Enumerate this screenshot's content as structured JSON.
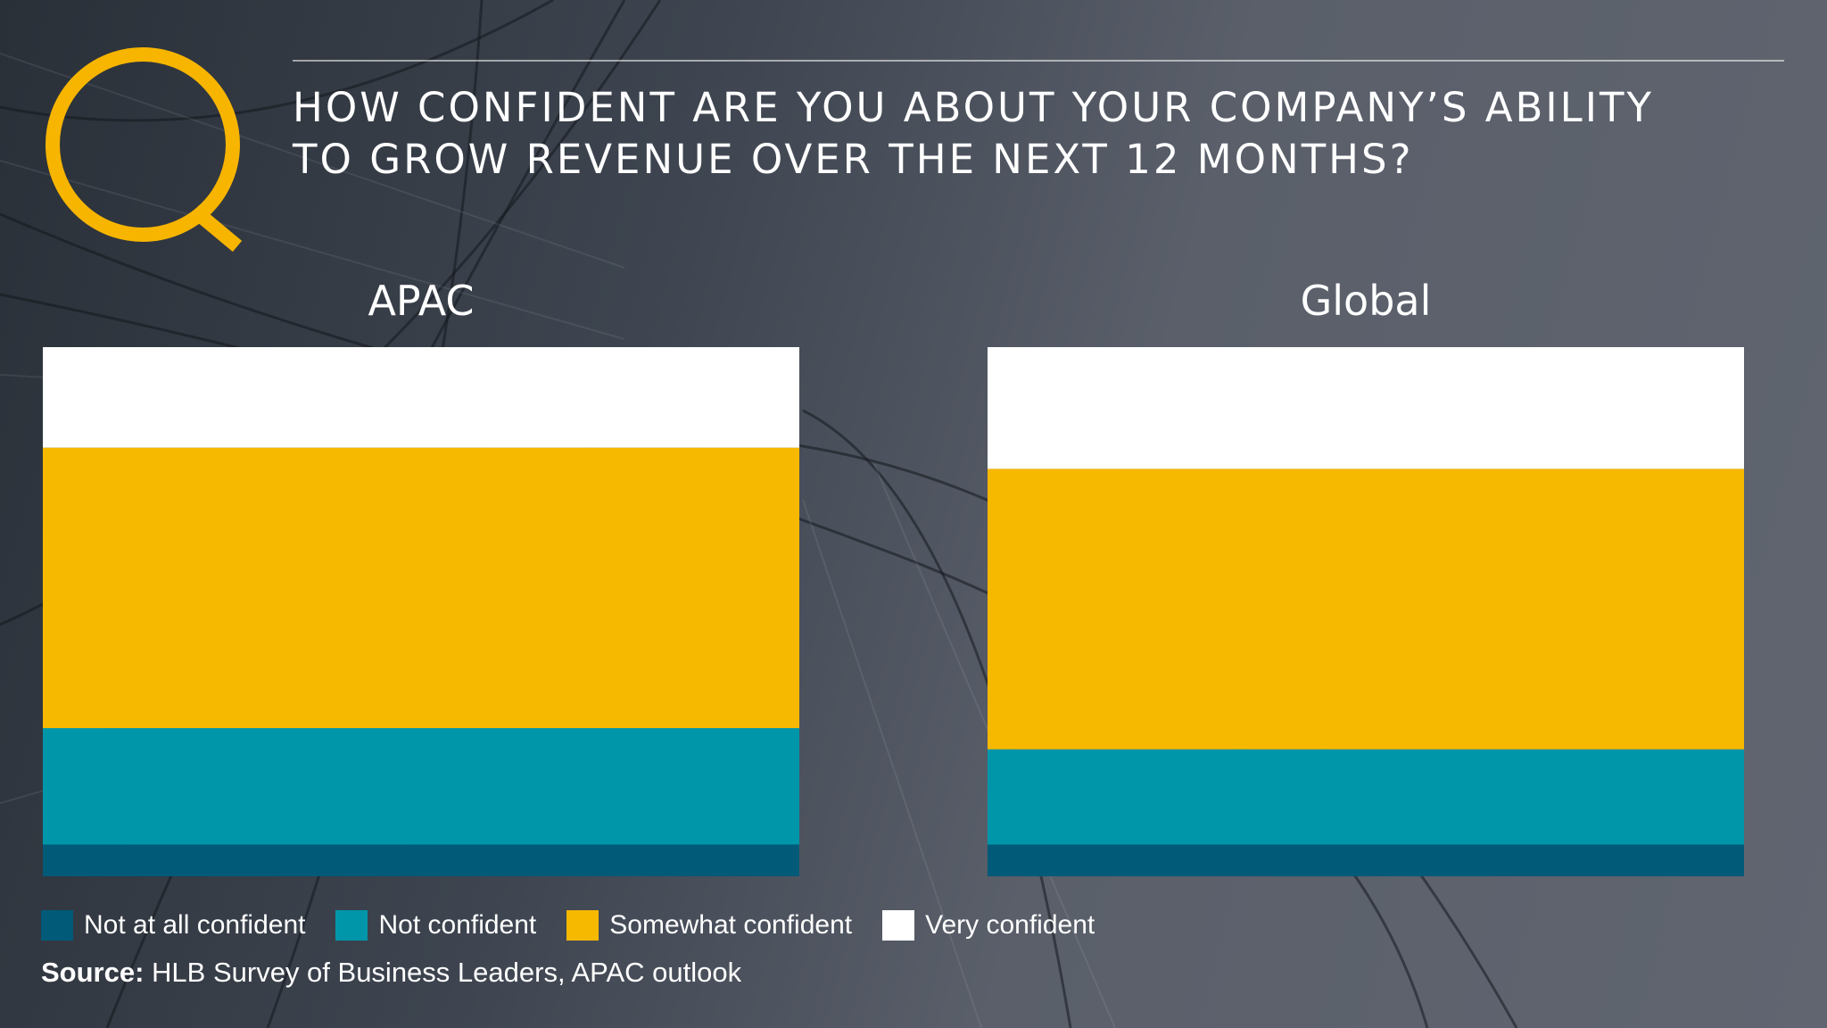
{
  "title": {
    "line1": "HOW CONFIDENT ARE YOU ABOUT YOUR COMPANY’S ABILITY",
    "line2": "TO GROW REVENUE OVER THE NEXT 12 MONTHS?"
  },
  "logo": {
    "letter": "Q",
    "icon": "q-logo-icon",
    "color": "#F7B500"
  },
  "colors": {
    "not_at_all": "#005A78",
    "not_confident": "#0096AA",
    "somewhat": "#F7B800",
    "very": "#FFFFFF"
  },
  "chart_data": [
    {
      "type": "bar",
      "stacked": true,
      "title": "APAC",
      "categories": [
        "APAC"
      ],
      "series": [
        {
          "name": "Not at all confident",
          "values": [
            6
          ]
        },
        {
          "name": "Not confident",
          "values": [
            22
          ]
        },
        {
          "name": "Somewhat confident",
          "values": [
            53
          ]
        },
        {
          "name": "Very confident",
          "values": [
            19
          ]
        }
      ],
      "ylim": [
        0,
        100
      ]
    },
    {
      "type": "bar",
      "stacked": true,
      "title": "Global",
      "categories": [
        "Global"
      ],
      "series": [
        {
          "name": "Not at all confident",
          "values": [
            6
          ]
        },
        {
          "name": "Not confident",
          "values": [
            18
          ]
        },
        {
          "name": "Somewhat confident",
          "values": [
            53
          ]
        },
        {
          "name": "Very confident",
          "values": [
            23
          ]
        }
      ],
      "ylim": [
        0,
        100
      ]
    }
  ],
  "legend": [
    {
      "label": "Not at all confident",
      "color": "#005A78"
    },
    {
      "label": "Not confident",
      "color": "#0096AA"
    },
    {
      "label": "Somewhat confident",
      "color": "#F7B800"
    },
    {
      "label": "Very confident",
      "color": "#FFFFFF"
    }
  ],
  "source": {
    "prefix": "Source:",
    "text": " HLB Survey of Business Leaders, APAC outlook"
  }
}
